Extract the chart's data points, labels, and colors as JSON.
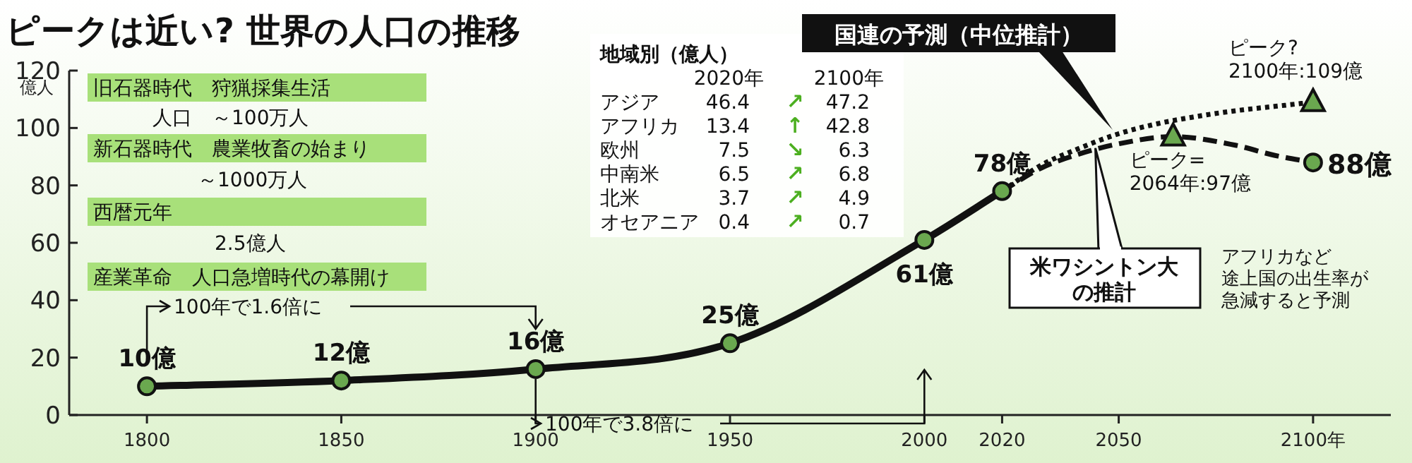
{
  "chart_data": {
    "type": "line",
    "title": "ピークは近い? 世界の人口の推移",
    "ylabel": "億人",
    "xlim": [
      1780,
      2120
    ],
    "ylim": [
      0,
      120
    ],
    "xticks": [
      1800,
      1850,
      1900,
      1950,
      2000,
      2020,
      2050,
      {
        "value": 2100,
        "label": "2100年"
      }
    ],
    "yticks": [
      0,
      20,
      40,
      60,
      80,
      100,
      120
    ],
    "grid": false,
    "series": [
      {
        "type": "line",
        "color": "#111111",
        "marker": "circle",
        "line_style": "solid",
        "x": [
          1800,
          1850,
          1900,
          1950,
          2000,
          2020
        ],
        "values": [
          10,
          12,
          16,
          25,
          61,
          78
        ],
        "value_labels": [
          "10億",
          "12億",
          "16億",
          "25億",
          "61億",
          "78億"
        ]
      },
      {
        "type": "line",
        "color": "#111111",
        "marker": "none",
        "line_style": "dotted",
        "x": [
          2020,
          2030,
          2040,
          2050,
          2060,
          2070,
          2080,
          2090,
          2100
        ],
        "values": [
          78,
          87,
          93,
          98,
          101.5,
          104,
          106,
          107.5,
          109
        ]
      },
      {
        "type": "line",
        "color": "#111111",
        "marker": "none",
        "line_style": "dashed",
        "x": [
          2020,
          2030,
          2040,
          2050,
          2064,
          2080,
          2090,
          2100
        ],
        "values": [
          78,
          86,
          91,
          94.5,
          97,
          94,
          90.5,
          88
        ]
      },
      {
        "type": "scatter",
        "color": "#6aa84f",
        "marker": "triangle",
        "x": [
          2064,
          2100
        ],
        "values": [
          97,
          109
        ]
      },
      {
        "type": "scatter",
        "color": "#6aa84f",
        "marker": "circle",
        "x": [
          2100
        ],
        "values": [
          88
        ],
        "value_labels": [
          "88億"
        ]
      }
    ],
    "annotations": [
      "旧石器時代　狩猟採集生活",
      "人口　～100万人",
      "新石器時代　農業牧畜の始まり",
      "～1000万人",
      "西暦元年",
      "2.5億人",
      "産業革命　人口急増時代の幕開け",
      "100年で1.6倍に",
      {
        "text": "100年で3.8倍に",
        "x": 1900,
        "y": 16
      },
      "地域別（億人）",
      "2020年 2100年",
      "アジア 46.4 ↗ 47.2",
      "アフリカ 13.4 ↑ 42.8",
      "欧州 7.5 ↘ 6.3",
      "中南米 6.5 ↗ 6.8",
      "北米 3.7 ↗ 4.9",
      "オセアニア 0.4 ↗ 0.7",
      "国連の予測（中位推計）",
      {
        "text": "米ワシントン大の推計",
        "x": 2044,
        "y": 93
      },
      {
        "text": "ピーク?\n2100年:109億",
        "x": 2100,
        "y": 109
      },
      {
        "text": "ピーク=\n2064年:97億",
        "x": 2064,
        "y": 97
      },
      "アフリカなど途上国の出生率が急減すると予測"
    ]
  }
}
